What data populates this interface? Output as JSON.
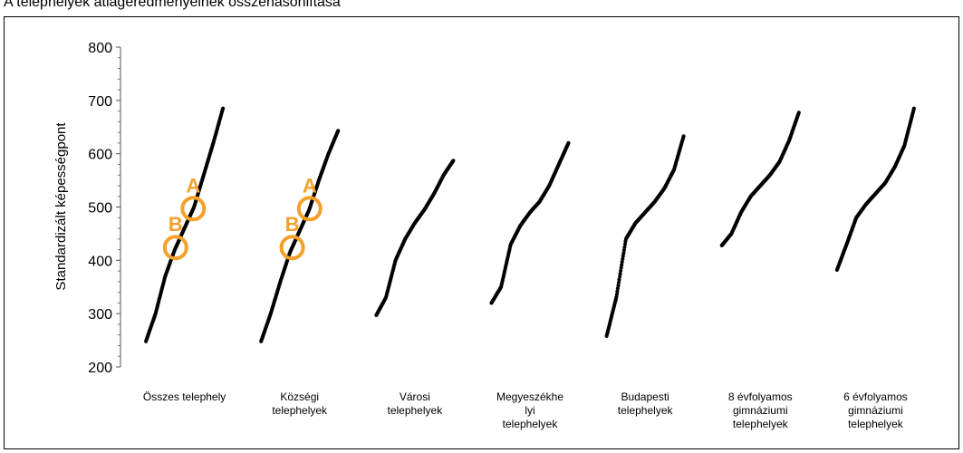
{
  "caption": ". A telephelyek átlageredményeinek összehasonlítása",
  "chart_data": {
    "type": "scatter",
    "ylabel": "Standardizált képességpont",
    "ylim": [
      200,
      800
    ],
    "yticks": [
      200,
      300,
      400,
      500,
      600,
      700,
      800
    ],
    "ytick_labels": [
      "200",
      "300",
      "400",
      "500",
      "600",
      "700",
      "800"
    ],
    "grid": false,
    "categories": [
      [
        "Összes telephely"
      ],
      [
        "Községi",
        "telephelyek"
      ],
      [
        "Városi",
        "telephelyek"
      ],
      [
        "Megyeszékhe",
        "lyi",
        "telephelyek"
      ],
      [
        "Budapesti",
        "telephelyek"
      ],
      [
        "8 évfolyamos",
        "gimnáziumi",
        "telephelyek"
      ],
      [
        "6 évfolyamos",
        "gimnáziumi",
        "telephelyek"
      ]
    ],
    "distributions": [
      {
        "quantiles": [
          248,
          300,
          370,
          420,
          460,
          500,
          560,
          620,
          685
        ]
      },
      {
        "quantiles": [
          248,
          300,
          360,
          415,
          455,
          495,
          550,
          600,
          643
        ]
      },
      {
        "quantiles": [
          297,
          330,
          400,
          440,
          470,
          495,
          525,
          560,
          587
        ]
      },
      {
        "quantiles": [
          320,
          350,
          430,
          465,
          490,
          510,
          540,
          580,
          620
        ]
      },
      {
        "quantiles": [
          258,
          330,
          440,
          470,
          490,
          510,
          535,
          570,
          633
        ]
      },
      {
        "quantiles": [
          428,
          450,
          490,
          520,
          540,
          560,
          585,
          625,
          677
        ]
      },
      {
        "quantiles": [
          382,
          430,
          480,
          505,
          525,
          545,
          575,
          615,
          685
        ]
      }
    ],
    "annotations": [
      {
        "label": "A",
        "category": 0,
        "y": 497
      },
      {
        "label": "B",
        "category": 0,
        "y": 424
      },
      {
        "label": "A",
        "category": 1,
        "y": 497
      },
      {
        "label": "B",
        "category": 1,
        "y": 424
      }
    ],
    "annotation_color": "#f5a02a"
  }
}
